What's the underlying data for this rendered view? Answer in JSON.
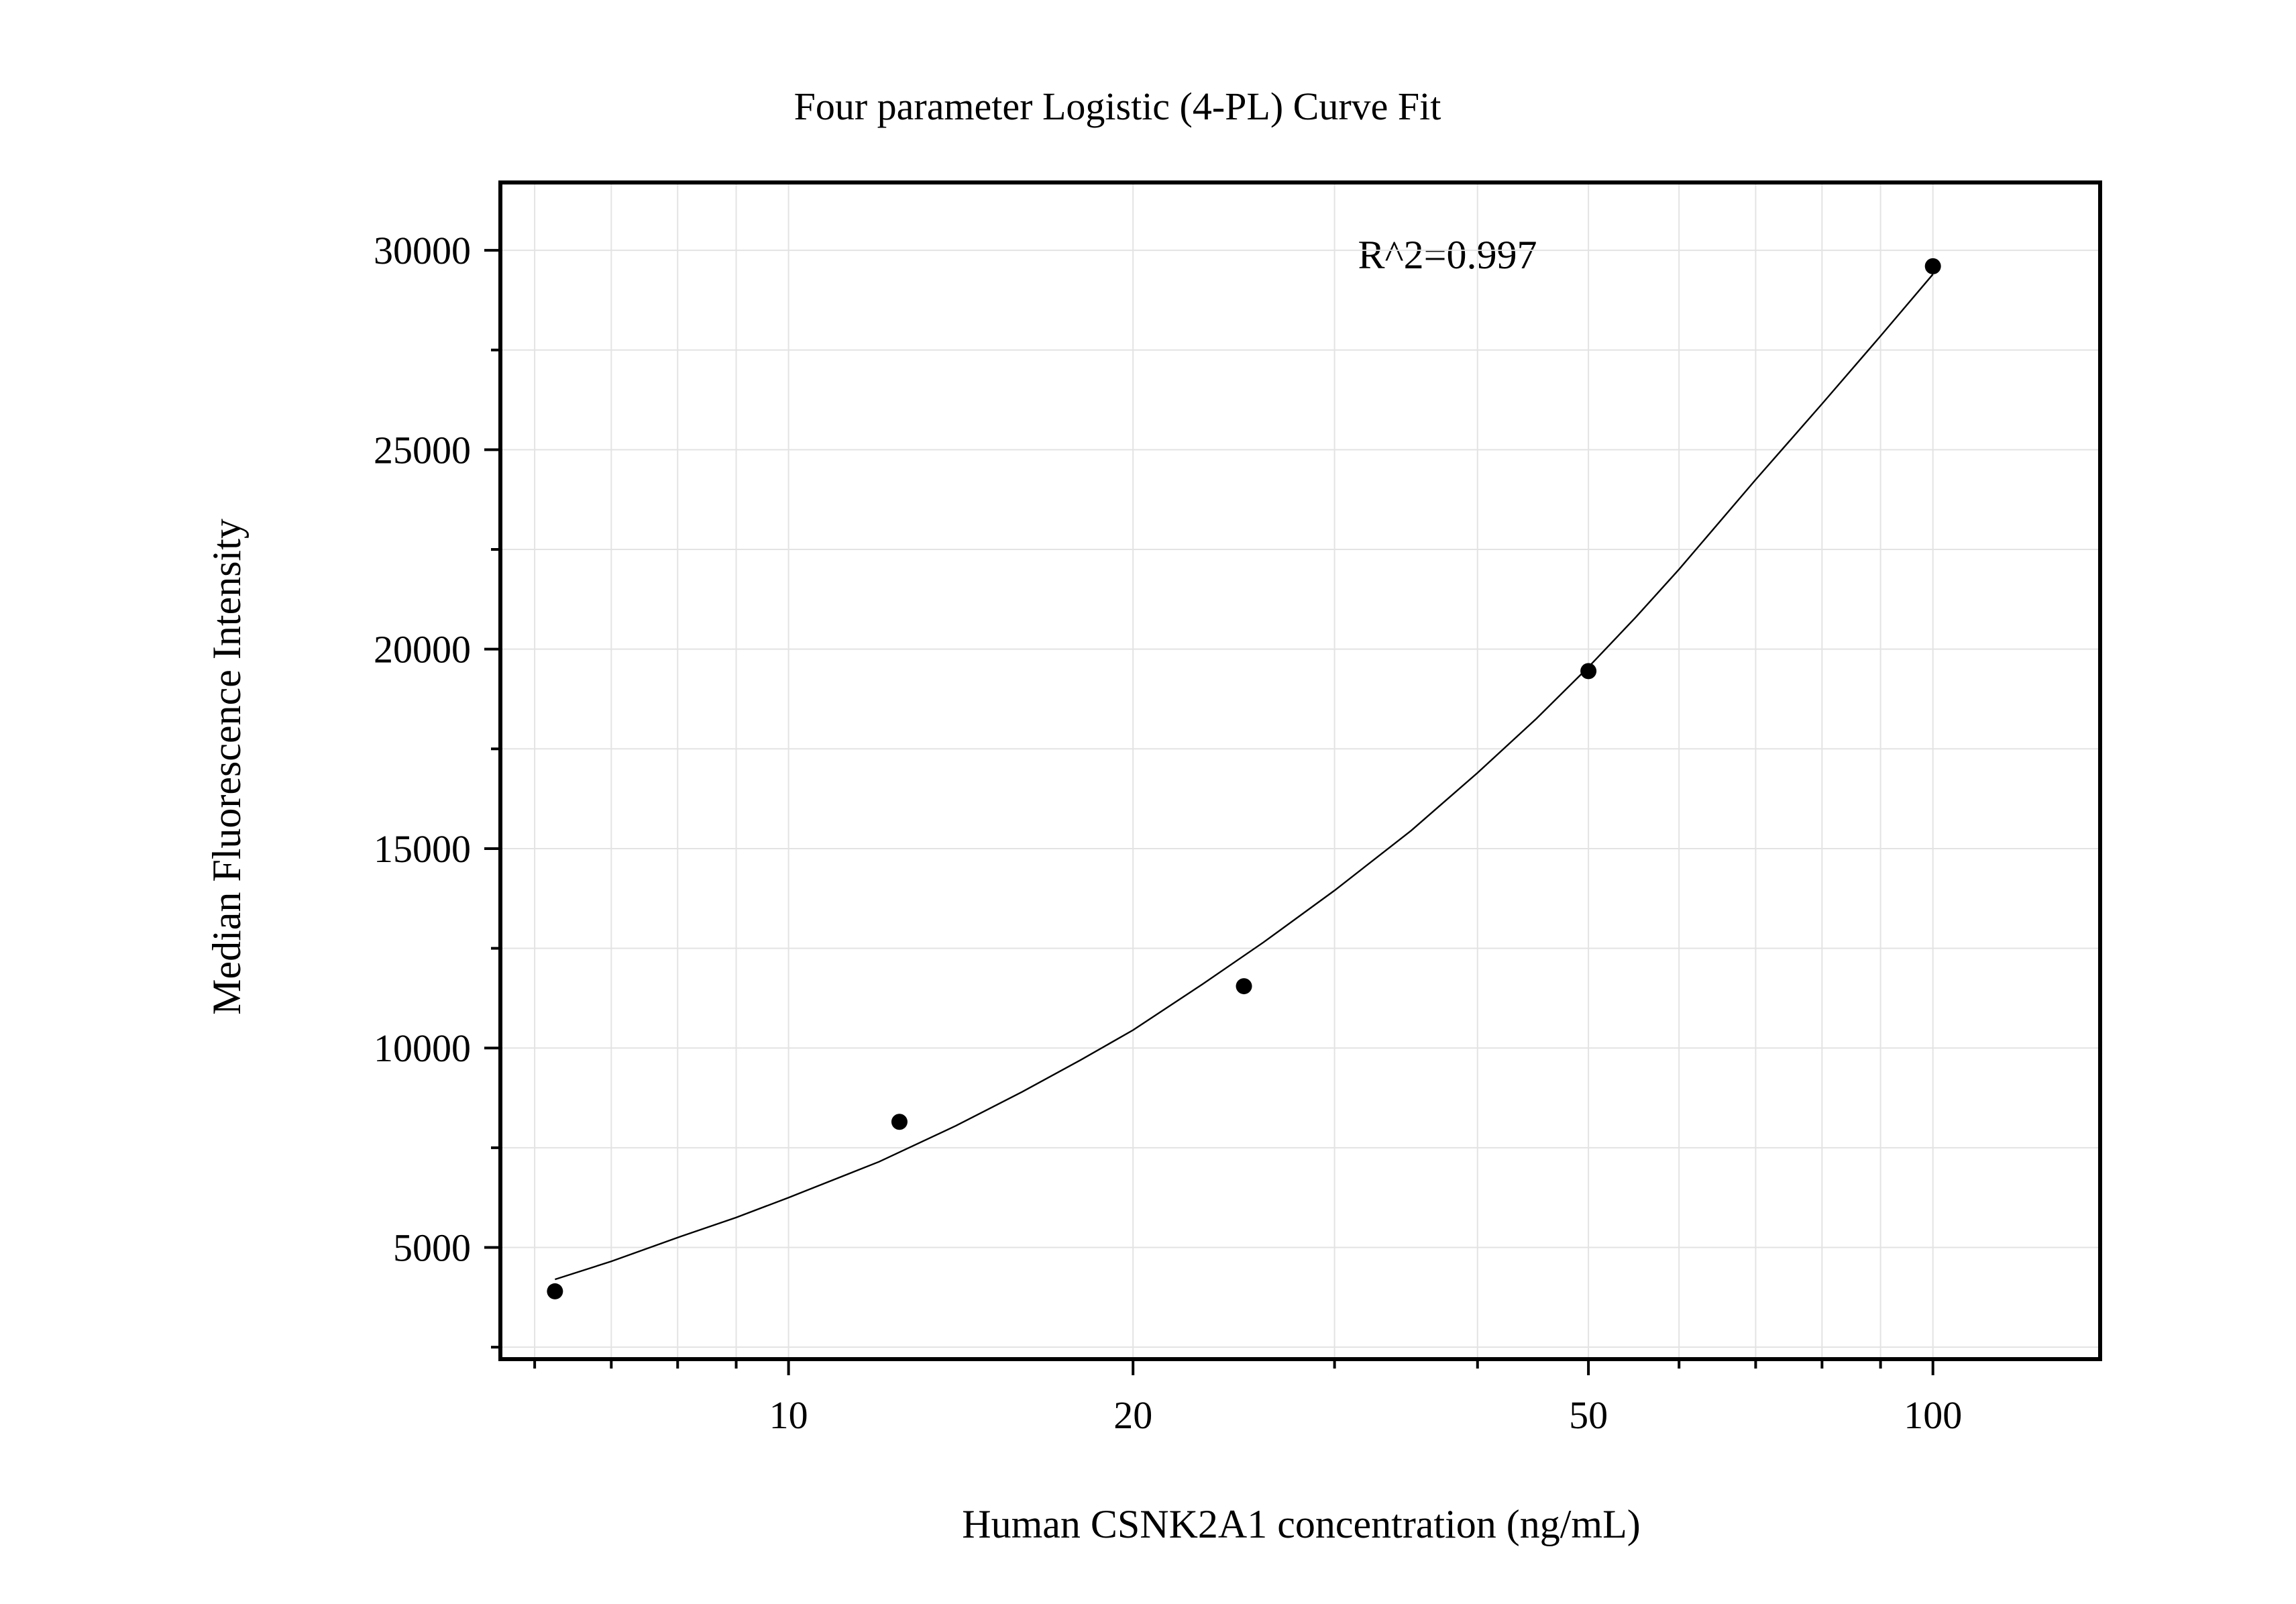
{
  "chart_data": {
    "type": "scatter",
    "title": "Four parameter Logistic (4-PL) Curve Fit",
    "xlabel": "Human CSNK2A1 concentration (ng/mL)",
    "ylabel": "Median Fluorescence Intensity",
    "annotation": "R^2=0.997",
    "x_scale": "log",
    "xlim": [
      5.6,
      140
    ],
    "ylim": [
      2200,
      31700
    ],
    "x_ticks": [
      10,
      20,
      50,
      100
    ],
    "x_tick_labels": [
      "10",
      "20",
      "50",
      "100"
    ],
    "y_ticks": [
      5000,
      10000,
      15000,
      20000,
      25000,
      30000
    ],
    "y_tick_labels": [
      "5000",
      "10000",
      "15000",
      "20000",
      "25000",
      "30000"
    ],
    "grid": true,
    "series": [
      {
        "points": [
          {
            "x": 6.25,
            "y": 3900
          },
          {
            "x": 12.5,
            "y": 8150
          },
          {
            "x": 25,
            "y": 11550
          },
          {
            "x": 50,
            "y": 19450
          },
          {
            "x": 100,
            "y": 29600
          }
        ]
      }
    ],
    "fit_curve": {
      "x": [
        6.25,
        7,
        8,
        9,
        10,
        12,
        14,
        16,
        18,
        20,
        23,
        26,
        30,
        35,
        40,
        45,
        50,
        55,
        60,
        70,
        80,
        90,
        100
      ],
      "y": [
        4200,
        4650,
        5250,
        5750,
        6250,
        7150,
        8050,
        8900,
        9700,
        10450,
        11600,
        12650,
        13950,
        15450,
        16900,
        18250,
        19550,
        20800,
        22000,
        24250,
        26150,
        27850,
        29400
      ]
    },
    "colors": {
      "points": "#000000",
      "curve": "#000000",
      "grid": "#e3e3e3",
      "frame": "#000000"
    }
  }
}
